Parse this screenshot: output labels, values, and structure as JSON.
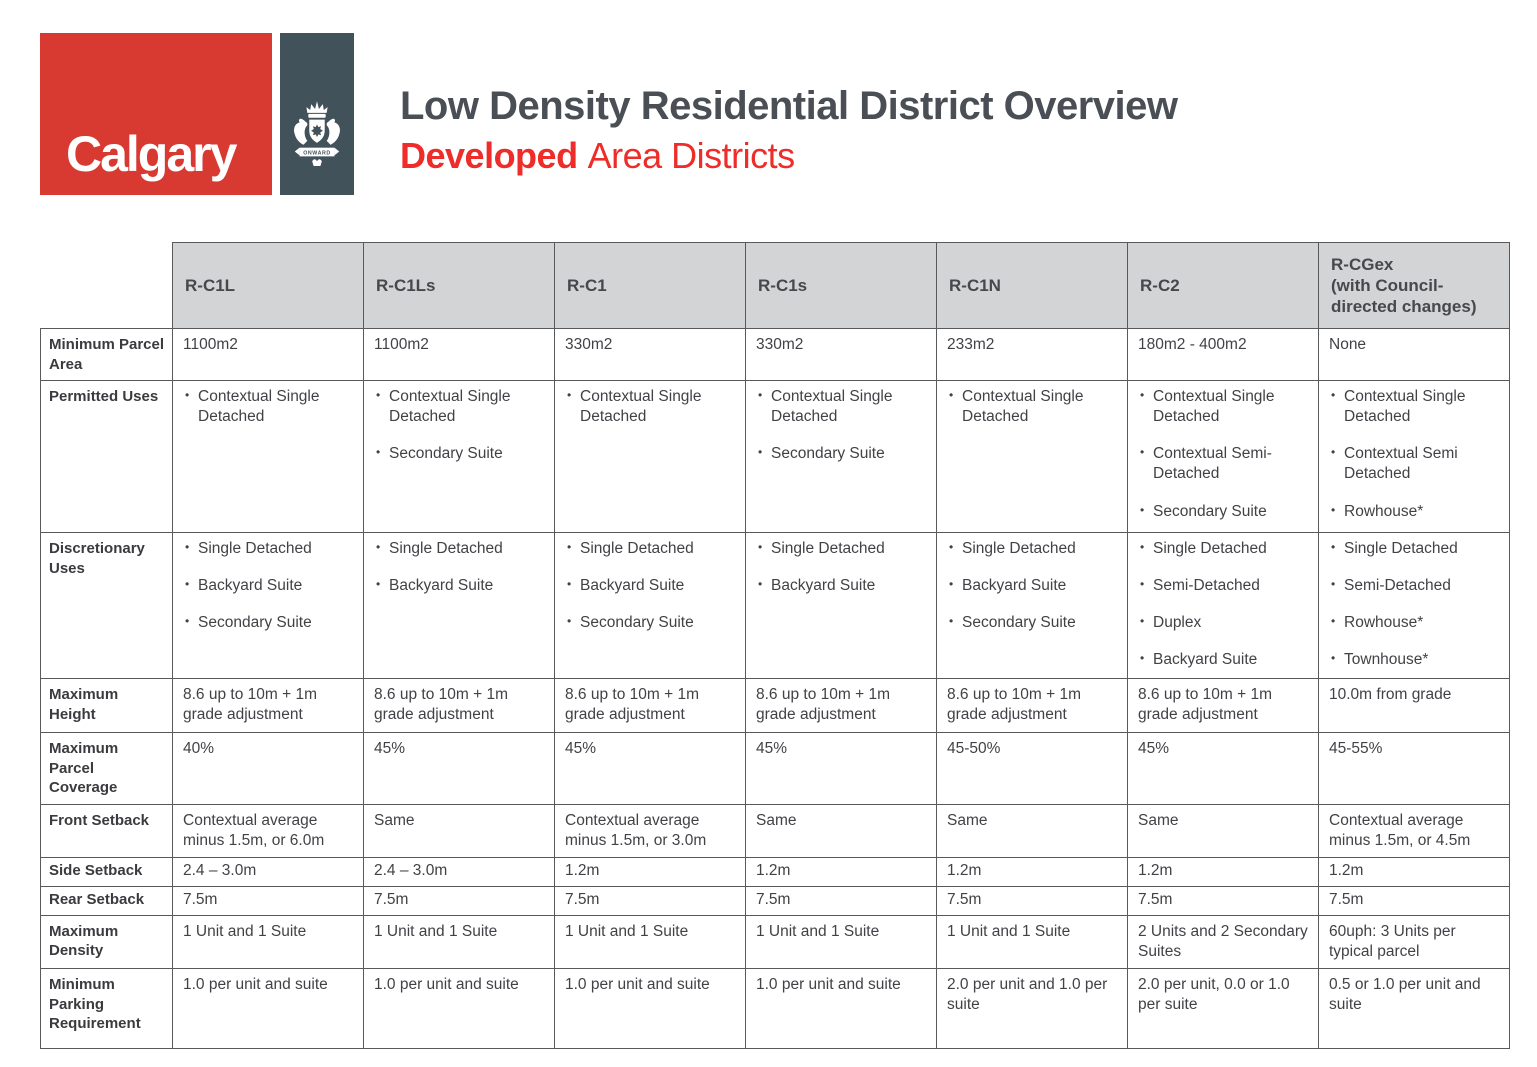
{
  "logo": {
    "wordmark": "Calgary",
    "crest": "calgary-coat-of-arms",
    "motto": "ONWARD"
  },
  "header": {
    "title": "Low Density Residential District Overview",
    "subtitle_bold": "Developed",
    "subtitle_rest": "Area Districts"
  },
  "colors": {
    "logo_red": "#d83a32",
    "crest_slate": "#42525a",
    "title_grey": "#4a4e55",
    "subtitle_red": "#ee2c29",
    "table_header_fill": "#d3d4d6",
    "border": "#58595b",
    "text": "#414246"
  },
  "table": {
    "columns": [
      "R-C1L",
      "R-C1Ls",
      "R-C1",
      "R-C1s",
      "R-C1N",
      "R-C2",
      "R-CGex\n(with Council-directed changes)"
    ],
    "rows": [
      {
        "label": "Minimum Parcel Area",
        "cells": [
          "1100m2",
          "1100m2",
          "330m2",
          "330m2",
          "233m2",
          "180m2 - 400m2",
          "None"
        ]
      },
      {
        "label": "Permitted Uses",
        "cells": [
          [
            "Contextual Single Detached"
          ],
          [
            "Contextual Single Detached",
            "Secondary Suite"
          ],
          [
            "Contextual Single Detached"
          ],
          [
            "Contextual Single Detached",
            "Secondary Suite"
          ],
          [
            "Contextual Single Detached"
          ],
          [
            "Contextual Single Detached",
            "Contextual Semi-Detached",
            "Secondary Suite"
          ],
          [
            "Contextual Single Detached",
            "Contextual Semi Detached",
            "Rowhouse*"
          ]
        ]
      },
      {
        "label": "Discretionary Uses",
        "cells": [
          [
            "Single Detached",
            "Backyard Suite",
            "Secondary Suite"
          ],
          [
            "Single Detached",
            "Backyard Suite"
          ],
          [
            "Single Detached",
            "Backyard Suite",
            "Secondary Suite"
          ],
          [
            "Single Detached",
            "Backyard Suite"
          ],
          [
            "Single Detached",
            "Backyard Suite",
            "Secondary Suite"
          ],
          [
            "Single Detached",
            "Semi-Detached",
            "Duplex",
            "Backyard Suite"
          ],
          [
            "Single Detached",
            "Semi-Detached",
            "Rowhouse*",
            "Townhouse*"
          ]
        ]
      },
      {
        "label": "Maximum Height",
        "cells": [
          "8.6 up to 10m + 1m grade adjustment",
          "8.6 up to 10m + 1m grade adjustment",
          "8.6 up to 10m + 1m grade adjustment",
          "8.6 up to 10m + 1m grade adjustment",
          "8.6 up to 10m + 1m grade adjustment",
          "8.6 up to 10m + 1m grade adjustment",
          "10.0m from grade"
        ]
      },
      {
        "label": "Maximum Parcel Coverage",
        "cells": [
          "40%",
          "45%",
          "45%",
          "45%",
          "45-50%",
          "45%",
          "45-55%"
        ]
      },
      {
        "label": "Front Setback",
        "cells": [
          "Contextual average minus 1.5m, or 6.0m",
          "Same",
          "Contextual average minus 1.5m, or 3.0m",
          "Same",
          "Same",
          "Same",
          "Contextual average minus 1.5m, or 4.5m"
        ]
      },
      {
        "label": "Side Setback",
        "cells": [
          "2.4 – 3.0m",
          "2.4 – 3.0m",
          "1.2m",
          "1.2m",
          "1.2m",
          "1.2m",
          "1.2m"
        ]
      },
      {
        "label": "Rear Setback",
        "cells": [
          "7.5m",
          "7.5m",
          "7.5m",
          "7.5m",
          "7.5m",
          "7.5m",
          "7.5m"
        ]
      },
      {
        "label": "Maximum Density",
        "cells": [
          "1 Unit and 1 Suite",
          "1 Unit and 1 Suite",
          "1 Unit and 1 Suite",
          "1 Unit and 1 Suite",
          "1 Unit and 1 Suite",
          "2 Units and 2 Secondary Suites",
          "60uph: 3 Units per typical parcel"
        ]
      },
      {
        "label": "Minimum Parking Requirement",
        "cells": [
          "1.0 per unit and suite",
          "1.0 per unit and suite",
          "1.0 per unit and suite",
          "1.0 per unit and suite",
          "2.0 per unit and 1.0 per suite",
          "2.0 per unit, 0.0 or 1.0 per suite",
          "0.5 or 1.0 per unit and suite"
        ]
      }
    ]
  }
}
